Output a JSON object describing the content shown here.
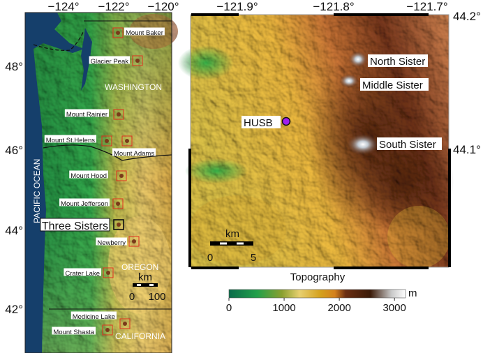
{
  "left_map": {
    "lon_ticks": [
      "−124°",
      "−122°",
      "−120°"
    ],
    "lat_ticks": [
      "48°",
      "46°",
      "44°",
      "42°"
    ],
    "ocean_label": "PACIFIC OCEAN",
    "states": [
      "WASHINGTON",
      "OREGON",
      "CALIFORNIA"
    ],
    "volcanoes": [
      {
        "name": "Mount Baker"
      },
      {
        "name": "Glacier Peak"
      },
      {
        "name": "Mount Rainier"
      },
      {
        "name": "Mount St.Helens"
      },
      {
        "name": "Mount Adams"
      },
      {
        "name": "Mount Hood"
      },
      {
        "name": "Mount Jefferson"
      },
      {
        "name": "Three Sisters",
        "highlighted": true
      },
      {
        "name": "Newberry"
      },
      {
        "name": "Crater Lake"
      },
      {
        "name": "Medicine Lake"
      },
      {
        "name": "Mount Shasta"
      }
    ],
    "scale_bar": {
      "unit": "km",
      "start": "0",
      "end": "100"
    },
    "box_color": "#e0301e"
  },
  "right_map": {
    "lon_ticks": [
      "−121.9°",
      "−121.8°",
      "−121.7°"
    ],
    "lat_ticks": [
      "44.2°",
      "44.1°"
    ],
    "peaks": [
      "North Sister",
      "Middle Sister",
      "South Sister"
    ],
    "station": {
      "name": "HUSB",
      "color": "#a020f0"
    },
    "scale_bar": {
      "unit": "km",
      "start": "0",
      "end": "5"
    }
  },
  "colorbar": {
    "title": "Topography",
    "unit": "m",
    "ticks": [
      "0",
      "1000",
      "2000",
      "3000"
    ],
    "range": [
      0,
      3200
    ],
    "colors": [
      "#0b6b4a",
      "#22a04a",
      "#e8d070",
      "#d4901c",
      "#6b2e12",
      "#3a1a08",
      "#ffffff"
    ]
  }
}
